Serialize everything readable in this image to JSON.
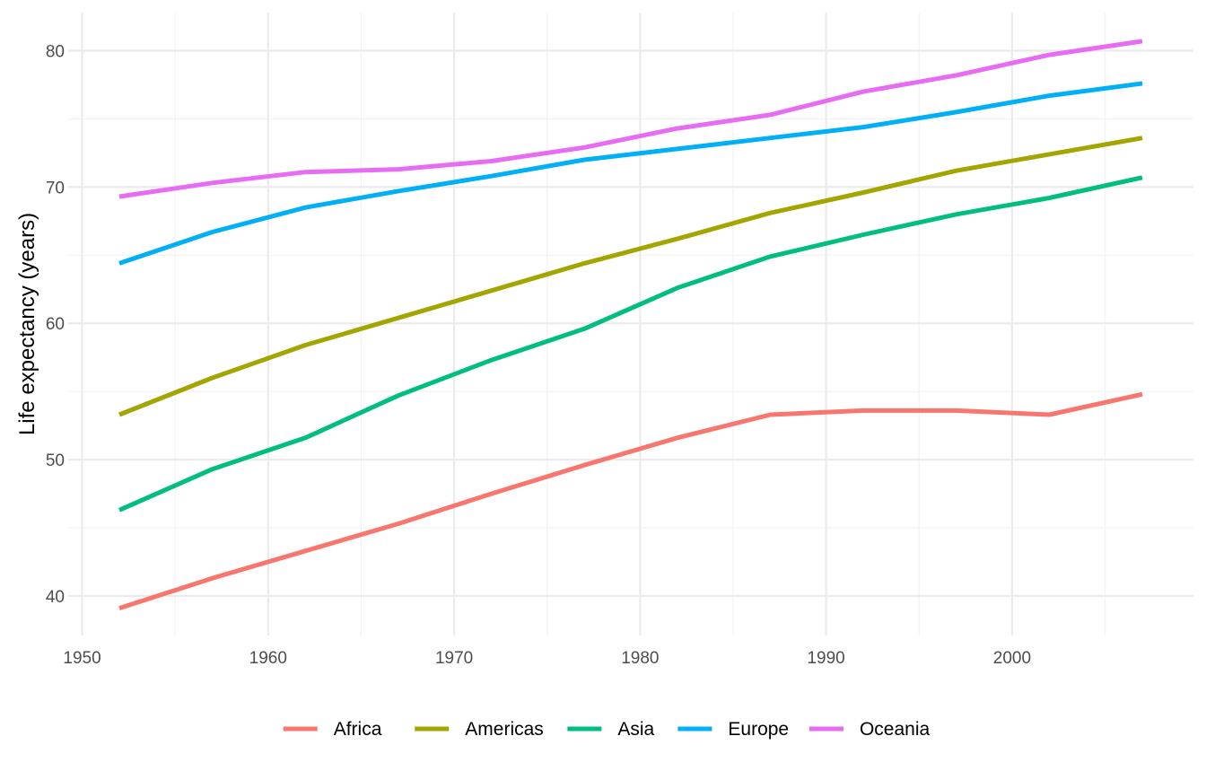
{
  "chart_data": {
    "type": "line",
    "title": "",
    "xlabel": "",
    "ylabel": "Life expectancy (years)",
    "xlim": [
      1950,
      2007
    ],
    "ylim": [
      37,
      83
    ],
    "x_ticks": [
      1950,
      1960,
      1970,
      1980,
      1990,
      2000
    ],
    "x_tick_labels": [
      "1950",
      "1960",
      "1970",
      "1980",
      "1990",
      "2000"
    ],
    "y_ticks": [
      40,
      50,
      60,
      70,
      80
    ],
    "y_tick_labels": [
      "40",
      "50",
      "60",
      "70",
      "80"
    ],
    "grid": true,
    "legend_position": "bottom",
    "x": [
      1952,
      1957,
      1962,
      1967,
      1972,
      1977,
      1982,
      1987,
      1992,
      1997,
      2002,
      2007
    ],
    "series": [
      {
        "name": "Africa",
        "color": "#F8766D",
        "values": [
          39.1,
          41.3,
          43.3,
          45.3,
          47.5,
          49.6,
          51.6,
          53.3,
          53.6,
          53.6,
          53.3,
          54.8
        ]
      },
      {
        "name": "Americas",
        "color": "#A3A500",
        "values": [
          53.3,
          56.0,
          58.4,
          60.4,
          62.4,
          64.4,
          66.2,
          68.1,
          69.6,
          71.2,
          72.4,
          73.6
        ]
      },
      {
        "name": "Asia",
        "color": "#00BF7D",
        "values": [
          46.3,
          49.3,
          51.6,
          54.7,
          57.3,
          59.6,
          62.6,
          64.9,
          66.5,
          68.0,
          69.2,
          70.7
        ]
      },
      {
        "name": "Europe",
        "color": "#00B0F6",
        "values": [
          64.4,
          66.7,
          68.5,
          69.7,
          70.8,
          72.0,
          72.8,
          73.6,
          74.4,
          75.5,
          76.7,
          77.6
        ]
      },
      {
        "name": "Oceania",
        "color": "#E76BF3",
        "values": [
          69.3,
          70.3,
          71.1,
          71.3,
          71.9,
          72.9,
          74.3,
          75.3,
          77.0,
          78.2,
          79.7,
          80.7
        ]
      }
    ]
  }
}
